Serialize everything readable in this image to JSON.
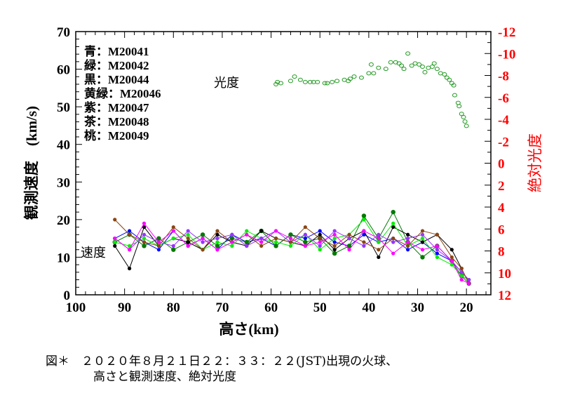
{
  "chart_data": {
    "type": "line",
    "title": "",
    "xlabel": "高さ(km)",
    "ylabel": "観測速度　(km/s)",
    "y2label": "絶対光度",
    "xlim": [
      100,
      15
    ],
    "ylim": [
      0,
      70
    ],
    "y2lim": [
      12,
      -12
    ],
    "xticks": [
      "100",
      "90",
      "80",
      "70",
      "60",
      "50",
      "40",
      "30",
      "20"
    ],
    "yticks": [
      "0",
      "10",
      "20",
      "30",
      "40",
      "50",
      "60",
      "70"
    ],
    "y2ticks": [
      "12",
      "10",
      "8",
      "6",
      "4",
      "2",
      "0",
      "-2",
      "-4",
      "-6",
      "-8",
      "-10",
      "-12"
    ],
    "annotations": {
      "velocity": "速度",
      "magnitude": "光度"
    },
    "legend": [
      {
        "label": "青：M20041",
        "color": "#0000ff"
      },
      {
        "label": "緑：M20042",
        "color": "#007a00"
      },
      {
        "label": "黒：M20044",
        "color": "#000000"
      },
      {
        "label": "黄緑：M20046",
        "color": "#00ee00"
      },
      {
        "label": "紫：M20047",
        "color": "#9933ff"
      },
      {
        "label": "茶：M20048",
        "color": "#8b4513"
      },
      {
        "label": "桃：M20049",
        "color": "#ff00ff"
      }
    ],
    "x": [
      92,
      89,
      86,
      83,
      80,
      77,
      74,
      71,
      68,
      65,
      62,
      59,
      56,
      53,
      50,
      47,
      44,
      41,
      38,
      35,
      32,
      29,
      26,
      23,
      21,
      19.5
    ],
    "series": [
      {
        "name": "M20041",
        "color": "#0000ff",
        "values": [
          15,
          17,
          14,
          12,
          17,
          13,
          15,
          12,
          16,
          14,
          15,
          13,
          16,
          15,
          17,
          14,
          13,
          16,
          14,
          15,
          12,
          14,
          11,
          9,
          6,
          4
        ]
      },
      {
        "name": "M20042",
        "color": "#007a00",
        "values": [
          14,
          16,
          13,
          15,
          12,
          14,
          16,
          13,
          15,
          14,
          17,
          13,
          16,
          14,
          15,
          11,
          13,
          21,
          15,
          22,
          14,
          10,
          13,
          9,
          5,
          3
        ]
      },
      {
        "name": "M20044",
        "color": "#000000",
        "values": [
          13,
          7,
          18,
          13,
          15,
          14,
          12,
          16,
          14,
          13,
          17,
          15,
          14,
          13,
          16,
          12,
          15,
          17,
          10,
          18,
          16,
          14,
          16,
          12,
          7,
          3
        ]
      },
      {
        "name": "M20046",
        "color": "#00ee00",
        "values": [
          14,
          13,
          15,
          13,
          15,
          16,
          12,
          14,
          13,
          17,
          15,
          14,
          13,
          16,
          12,
          15,
          16,
          20,
          14,
          19,
          13,
          15,
          10,
          8,
          5,
          4
        ]
      },
      {
        "name": "M20047",
        "color": "#9933ff",
        "values": [
          15,
          12,
          16,
          14,
          13,
          17,
          14,
          15,
          16,
          13,
          15,
          17,
          14,
          16,
          13,
          17,
          15,
          13,
          16,
          14,
          15,
          16,
          12,
          9,
          6,
          4
        ]
      },
      {
        "name": "M20048",
        "color": "#8b4513",
        "values": [
          20,
          16,
          14,
          13,
          18,
          15,
          12,
          17,
          14,
          16,
          13,
          15,
          14,
          18,
          15,
          13,
          16,
          14,
          12,
          15,
          13,
          17,
          16,
          10,
          7,
          3
        ]
      },
      {
        "name": "M20049",
        "color": "#ff00ff",
        "values": [
          15,
          12,
          19,
          14,
          17,
          13,
          15,
          12,
          14,
          16,
          14,
          17,
          15,
          13,
          14,
          16,
          12,
          17,
          15,
          11,
          14,
          12,
          13,
          9,
          4,
          3
        ]
      }
    ],
    "magnitude_series": {
      "name": "光度",
      "color": "#229922",
      "points": [
        [
          59,
          -7.2
        ],
        [
          58.7,
          -7.4
        ],
        [
          58,
          -7.3
        ],
        [
          56,
          -7.5
        ],
        [
          55.2,
          -7.9
        ],
        [
          54,
          -7.6
        ],
        [
          53,
          -7.4
        ],
        [
          52,
          -7.4
        ],
        [
          51.3,
          -7.4
        ],
        [
          50.5,
          -7.4
        ],
        [
          49,
          -7.3
        ],
        [
          48.5,
          -7.3
        ],
        [
          47.5,
          -7.4
        ],
        [
          46.5,
          -7.5
        ],
        [
          45,
          -7.6
        ],
        [
          44.2,
          -7.5
        ],
        [
          43.8,
          -7.7
        ],
        [
          43,
          -7.9
        ],
        [
          41.5,
          -7.8
        ],
        [
          40,
          -8.2
        ],
        [
          39.5,
          -9.0
        ],
        [
          39,
          -8.2
        ],
        [
          38,
          -8.7
        ],
        [
          36.5,
          -8.6
        ],
        [
          35.5,
          -9.2
        ],
        [
          34.5,
          -9.2
        ],
        [
          33.8,
          -9.1
        ],
        [
          33.3,
          -8.9
        ],
        [
          32.8,
          -8.6
        ],
        [
          32,
          -10.0
        ],
        [
          31.2,
          -8.9
        ],
        [
          30.5,
          -9.1
        ],
        [
          29.7,
          -9.0
        ],
        [
          29,
          -8.8
        ],
        [
          28.5,
          -8.3
        ],
        [
          27.8,
          -8.7
        ],
        [
          27,
          -8.8
        ],
        [
          26.6,
          -9.1
        ],
        [
          26,
          -8.6
        ],
        [
          25.3,
          -8.2
        ],
        [
          24.5,
          -8.1
        ],
        [
          24,
          -7.8
        ],
        [
          23.5,
          -7.6
        ],
        [
          23,
          -7.3
        ],
        [
          22.6,
          -7.1
        ],
        [
          22.4,
          -6.2
        ],
        [
          21.7,
          -5.5
        ],
        [
          21.5,
          -5.2
        ],
        [
          21,
          -4.5
        ],
        [
          20.6,
          -4.2
        ],
        [
          20.3,
          -3.8
        ],
        [
          20,
          -3.4
        ]
      ]
    }
  },
  "caption": {
    "line1": "図＊　２０２０年８月２１日２２：３３：２２(JST)出現の火球、",
    "line2": "高さと観測速度、絶対光度"
  }
}
